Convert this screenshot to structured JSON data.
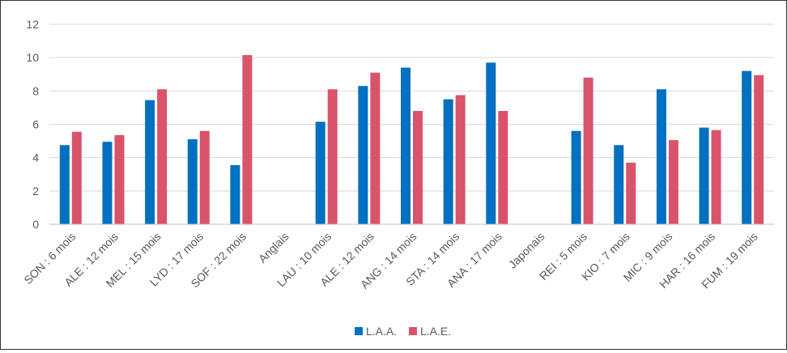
{
  "chart_data": {
    "type": "bar",
    "title": "",
    "xlabel": "",
    "ylabel": "",
    "ylim": [
      0,
      12
    ],
    "yticks": [
      0,
      2,
      4,
      6,
      8,
      10,
      12
    ],
    "grid": true,
    "legend_position": "bottom",
    "categories": [
      "SON : 6 mois",
      "ALE : 12 mois",
      "MEL : 15 mois",
      "LYD : 17 mois",
      "SOF : 22 mois",
      "Anglais",
      "LAU : 10 mois",
      "ALE : 12 mois",
      "ANG : 14 mois",
      "STA : 14 mois",
      "ANA : 17 mois",
      "Japonais",
      "REI : 5 mois",
      "KIO : 7 mois",
      "MIC : 9 mois",
      "HAR : 16 mois",
      "FUM : 19 mois"
    ],
    "series": [
      {
        "name": "L.A.A.",
        "color": "#0070C0",
        "values": [
          4.75,
          4.95,
          7.45,
          5.1,
          3.55,
          null,
          6.15,
          8.3,
          9.4,
          7.5,
          9.7,
          null,
          5.6,
          4.75,
          8.1,
          5.8,
          9.2
        ]
      },
      {
        "name": "L.A.E.",
        "color": "#D9546A",
        "values": [
          5.55,
          5.35,
          8.1,
          5.6,
          10.15,
          null,
          8.1,
          9.1,
          6.8,
          7.75,
          6.8,
          null,
          8.8,
          3.7,
          5.05,
          5.65,
          8.95
        ]
      }
    ]
  }
}
